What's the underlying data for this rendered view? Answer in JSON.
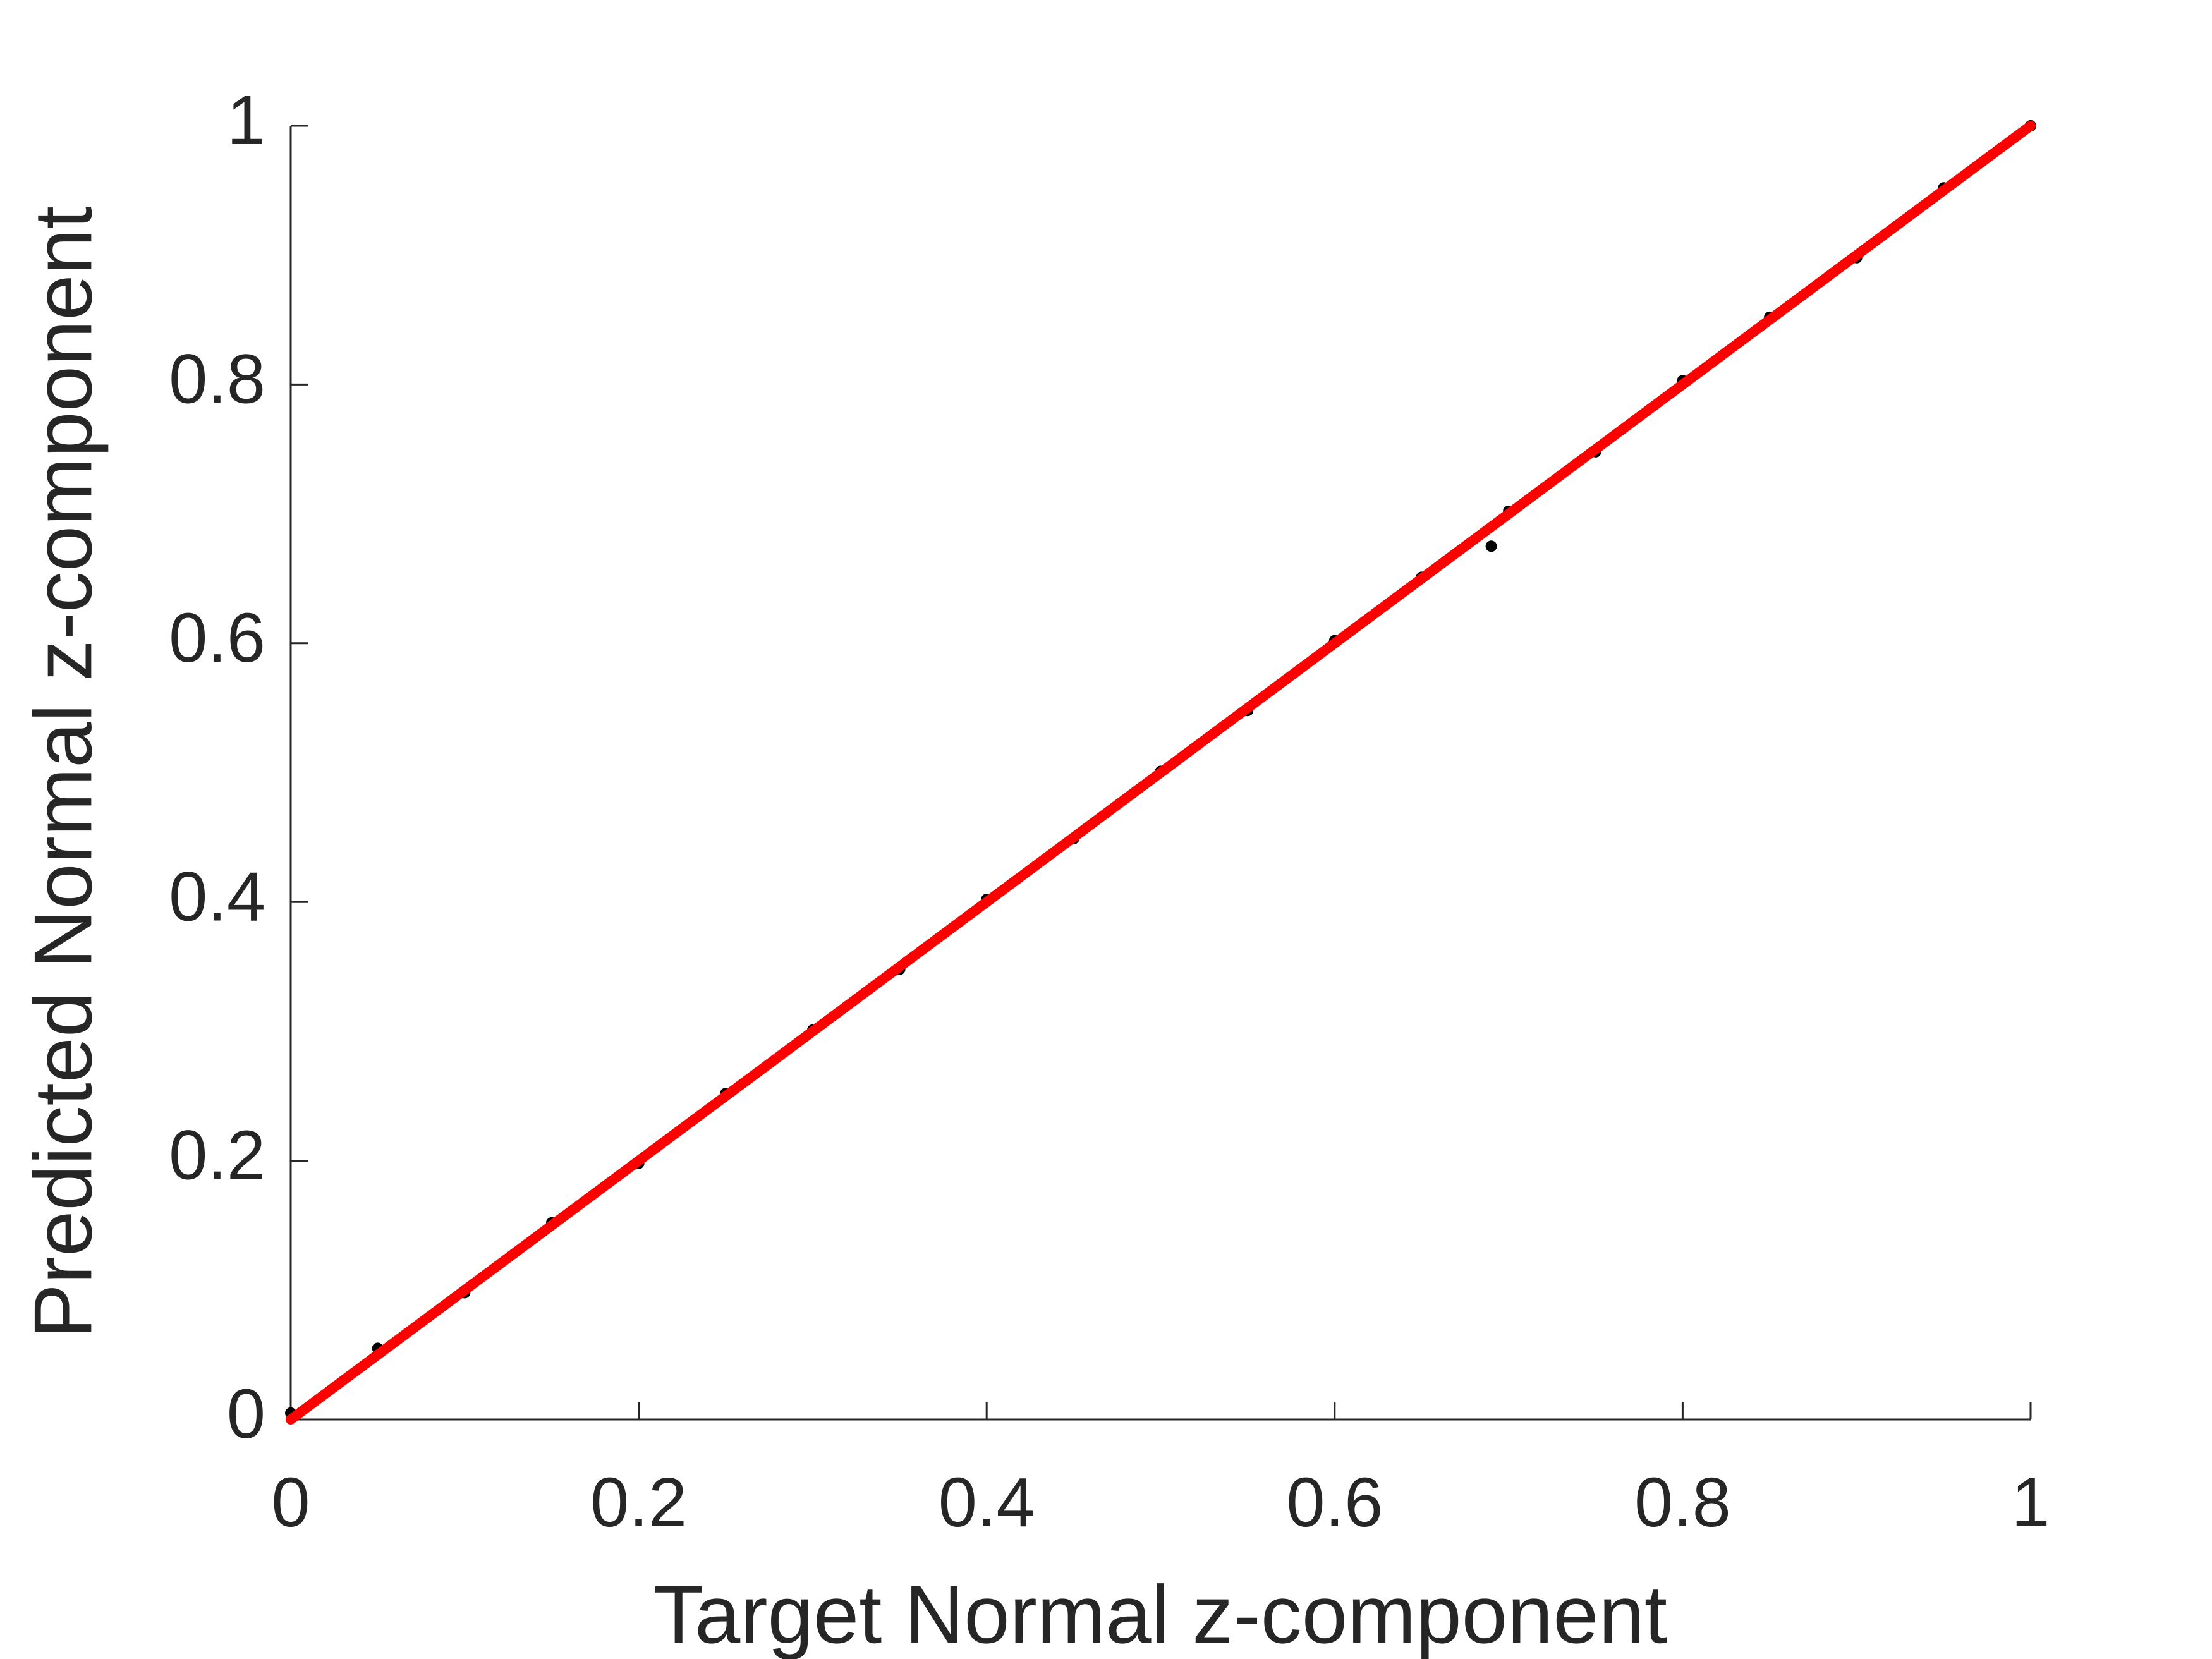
{
  "chart_data": {
    "type": "scatter",
    "x_label": "Target Normal z-component",
    "y_label": "Predicted Normal z-component",
    "xlim": [
      0,
      1
    ],
    "ylim": [
      0,
      1
    ],
    "xticks": [
      0,
      0.2,
      0.4,
      0.6,
      0.8,
      1
    ],
    "yticks": [
      0,
      0.2,
      0.4,
      0.6,
      0.8,
      1
    ],
    "series": [
      {
        "type": "scatter",
        "color": "#000000",
        "x": [
          0,
          0.05,
          0.1,
          0.15,
          0.2,
          0.25,
          0.3,
          0.35,
          0.4,
          0.45,
          0.5,
          0.55,
          0.6,
          0.65,
          0.69,
          0.7,
          0.75,
          0.8,
          0.85,
          0.9,
          0.95,
          1
        ],
        "values": [
          0.005,
          0.055,
          0.098,
          0.152,
          0.198,
          0.252,
          0.301,
          0.348,
          0.402,
          0.449,
          0.501,
          0.548,
          0.602,
          0.651,
          0.675,
          0.702,
          0.748,
          0.803,
          0.852,
          0.898,
          0.952,
          1
        ]
      },
      {
        "type": "line",
        "color": "#ff0000",
        "x": [
          0,
          1
        ],
        "values": [
          0,
          1
        ]
      }
    ]
  }
}
